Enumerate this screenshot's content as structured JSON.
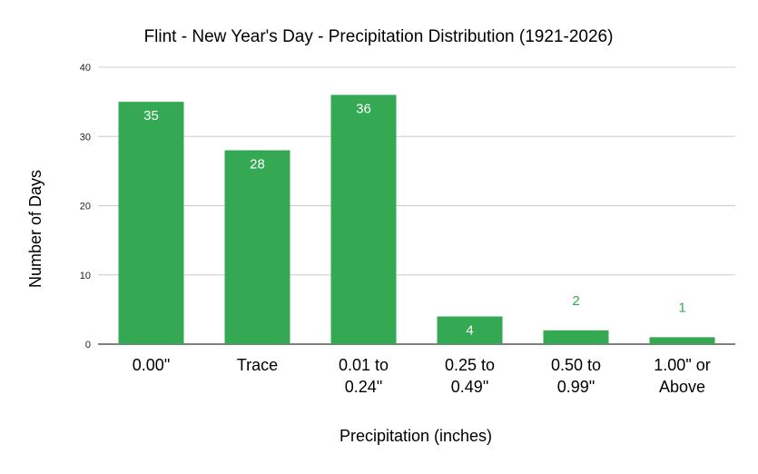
{
  "chart_data": {
    "type": "bar",
    "title": "Flint - New Year's Day - Precipitation Distribution (1921-2026)",
    "xlabel": "Precipitation (inches)",
    "ylabel": "Number of Days",
    "categories": [
      [
        "0.00\""
      ],
      [
        "Trace"
      ],
      [
        "0.01 to",
        "0.24\""
      ],
      [
        "0.25 to",
        "0.49\""
      ],
      [
        "0.50 to",
        "0.99\""
      ],
      [
        "1.00\" or",
        "Above"
      ]
    ],
    "values": [
      35,
      28,
      36,
      4,
      2,
      1
    ],
    "ylim": [
      0,
      40
    ],
    "yticks": [
      0,
      10,
      20,
      30,
      40
    ],
    "grid": true,
    "legend": "none",
    "colors": {
      "bar": "#34a853",
      "label_inside": "#ffffff",
      "label_outside": "#34a853",
      "grid": "#cccccc",
      "axis": "#333333",
      "text": "#000000",
      "tick_text": "#222222"
    }
  }
}
